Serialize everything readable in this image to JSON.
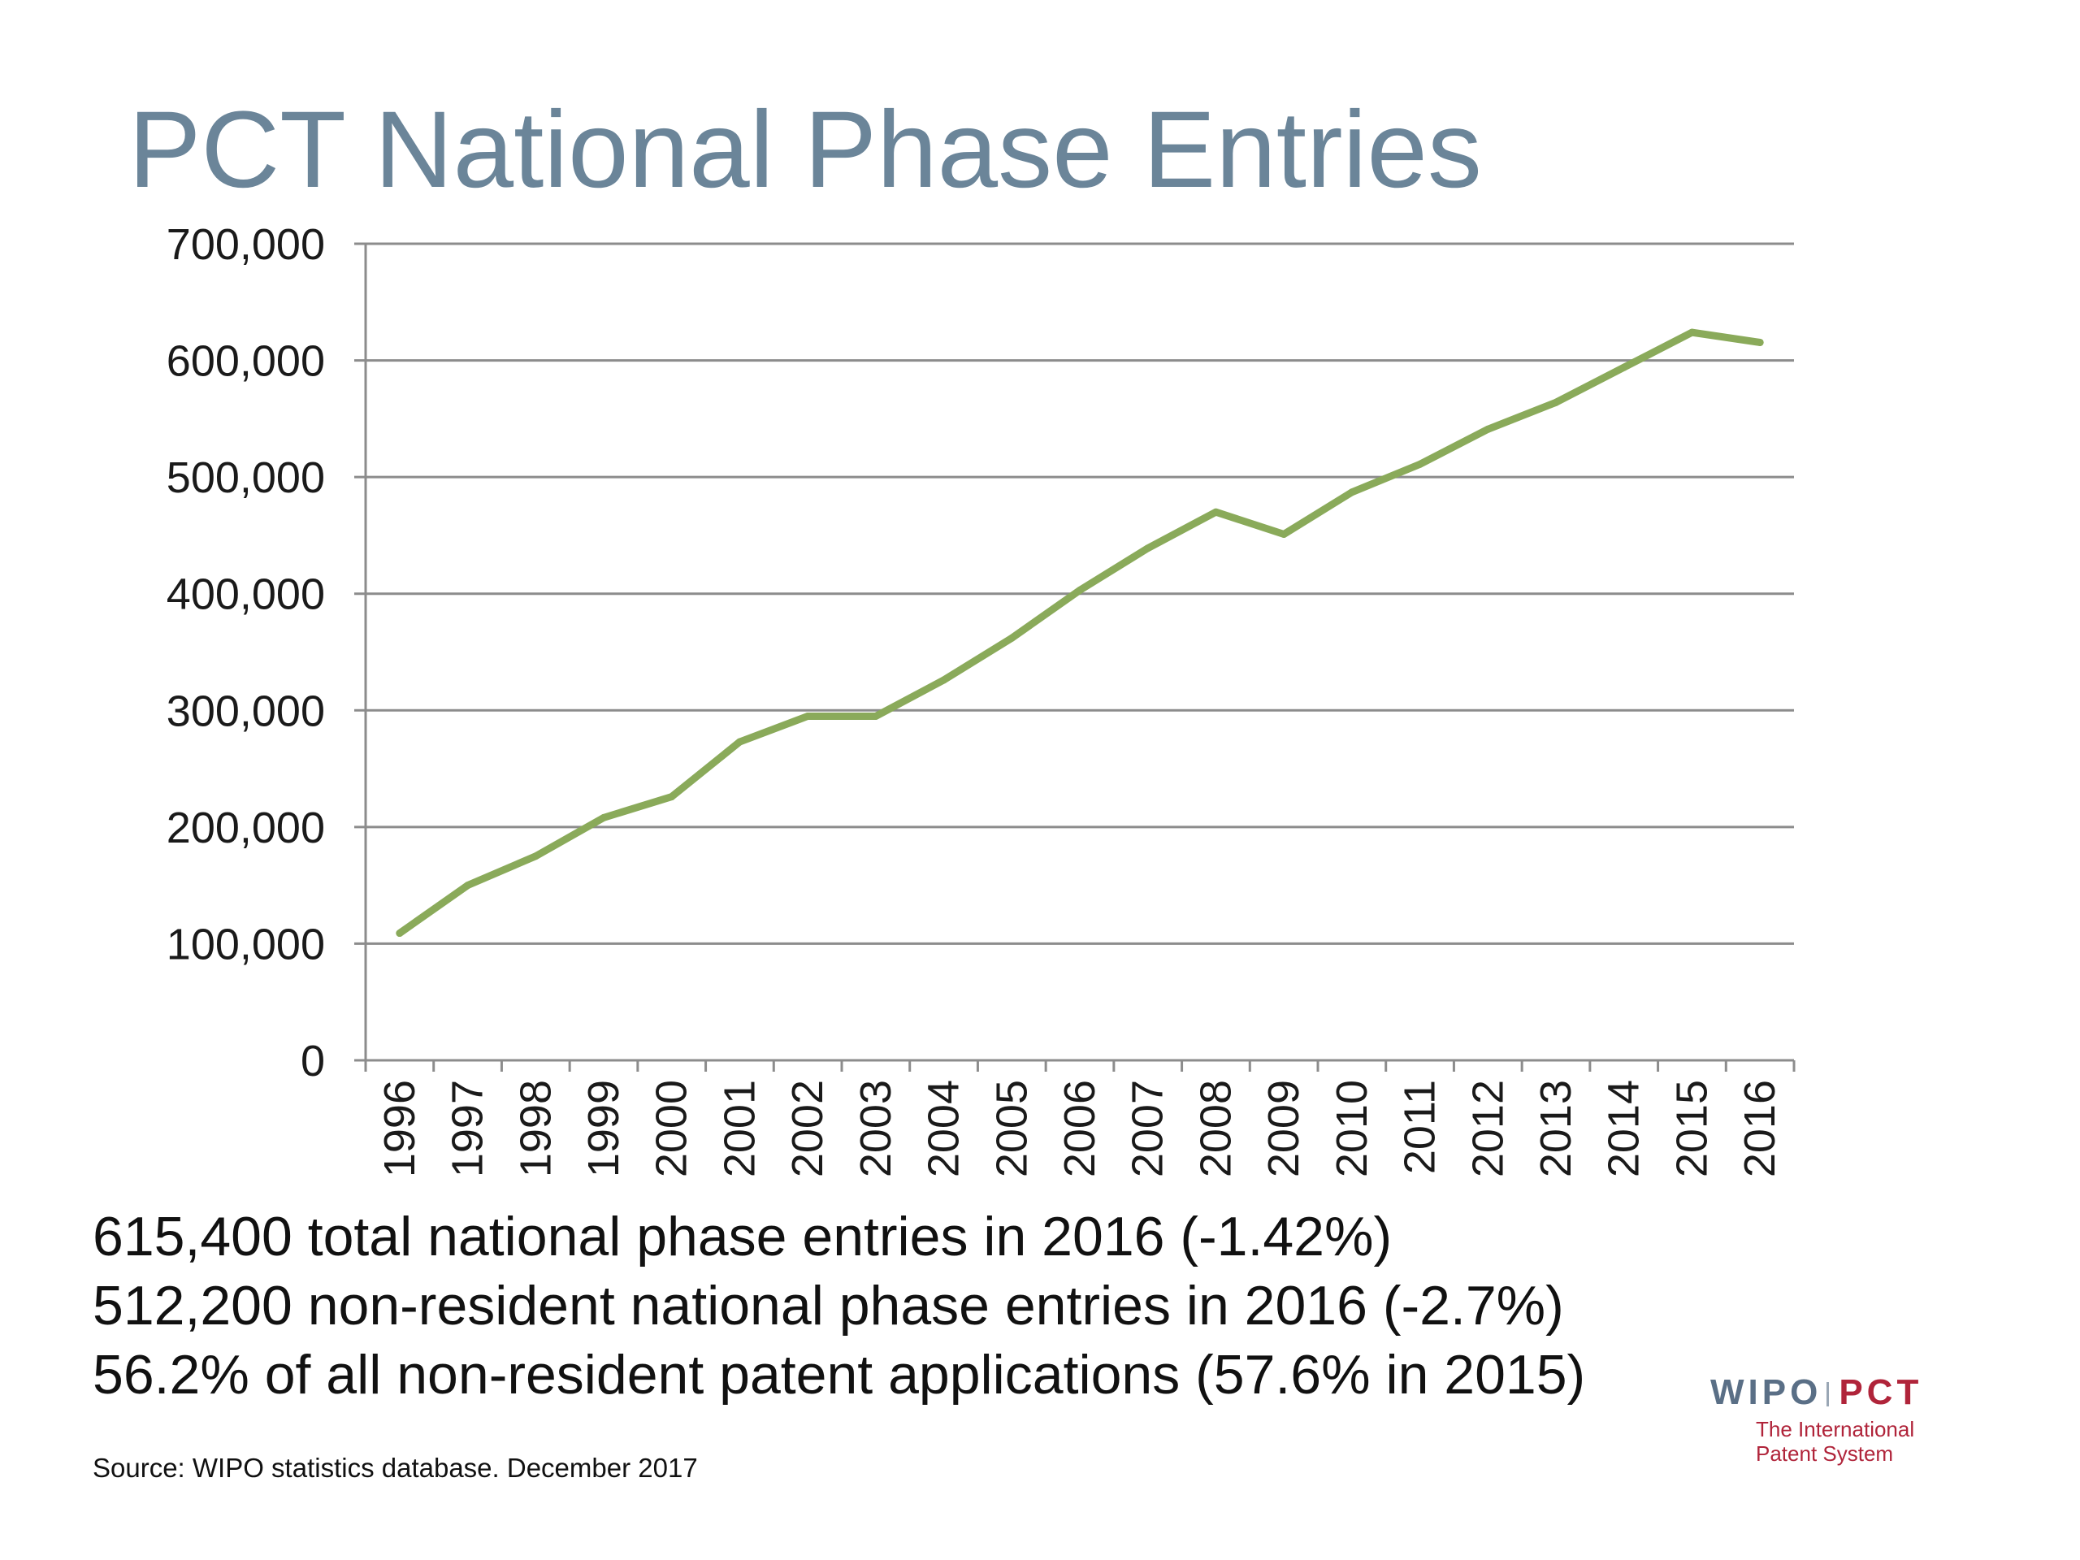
{
  "slide": {
    "title": "PCT National Phase Entries",
    "stats": [
      "615,400 total national phase entries in 2016 (-1.42%)",
      "512,200 non-resident national phase entries in 2016 (-2.7%)",
      "56.2% of all non-resident patent applications (57.6% in 2015)"
    ],
    "source": "Source: WIPO statistics database.  December 2017",
    "logo": {
      "left": "WIPO",
      "right": "PCT",
      "subtitle_line1": "The International",
      "subtitle_line2": "Patent System"
    }
  },
  "chart_data": {
    "type": "line",
    "title": "PCT National Phase Entries",
    "xlabel": "",
    "ylabel": "",
    "ylim": [
      0,
      700000
    ],
    "yticks": [
      0,
      100000,
      200000,
      300000,
      400000,
      500000,
      600000,
      700000
    ],
    "ytick_labels": [
      "0",
      "100,000",
      "200,000",
      "300,000",
      "400,000",
      "500,000",
      "600,000",
      "700,000"
    ],
    "grid": true,
    "legend": "none",
    "categories": [
      "1996",
      "1997",
      "1998",
      "1999",
      "2000",
      "2001",
      "2002",
      "2003",
      "2004",
      "2005",
      "2006",
      "2007",
      "2008",
      "2009",
      "2010",
      "2011",
      "2012",
      "2013",
      "2014",
      "2015",
      "2016"
    ],
    "series": [
      {
        "color": "#8aaa5a",
        "values": [
          109000,
          150000,
          175000,
          208000,
          226000,
          273000,
          295000,
          295000,
          326000,
          362000,
          403000,
          439000,
          470000,
          451000,
          487000,
          511000,
          541000,
          564000,
          594000,
          624000,
          615400
        ]
      }
    ]
  }
}
